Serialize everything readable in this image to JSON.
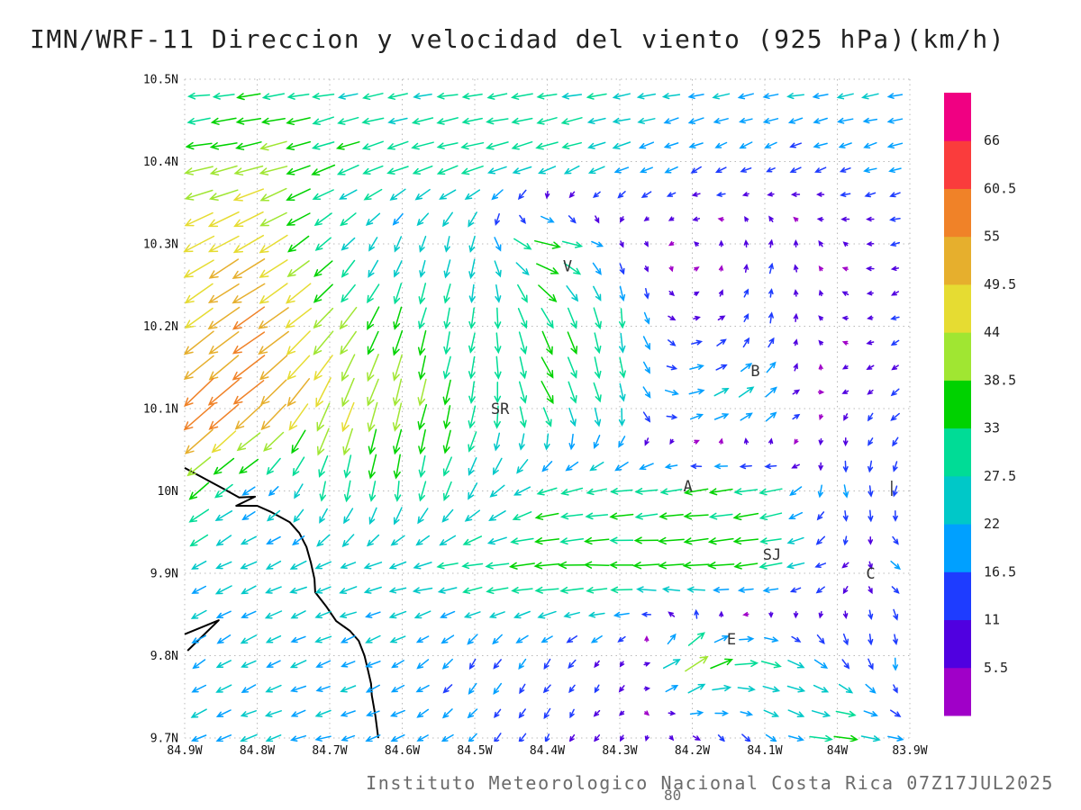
{
  "title": "IMN/WRF-11 Direccion y velocidad del viento (925 hPa)(km/h)",
  "footer": {
    "credit": "Instituto Meteorologico Nacional Costa Rica 07Z17JUL2025",
    "stray": "80"
  },
  "chart_data": {
    "type": "quiver",
    "title": "IMN/WRF-11 Direccion y velocidad del viento (925 hPa)(km/h)",
    "units": "km/h",
    "pressure_level": "925 hPa",
    "xlim": [
      -84.9,
      -83.9
    ],
    "ylim": [
      9.7,
      10.5
    ],
    "grid": "dotted",
    "xticks": [
      "84.9W",
      "84.8W",
      "84.7W",
      "84.6W",
      "84.5W",
      "84.4W",
      "84.3W",
      "84.2W",
      "84.1W",
      "84W",
      "83.9W"
    ],
    "yticks": [
      "10.5N",
      "10.4N",
      "10.3N",
      "10.2N",
      "10.1N",
      "10N",
      "9.9N",
      "9.8N",
      "9.7N"
    ],
    "colorbar": {
      "levels": [
        5.5,
        11,
        16.5,
        22,
        27.5,
        33,
        38.5,
        44,
        49.5,
        55,
        60.5,
        66
      ],
      "colors": [
        "#a000c8",
        "#5000e0",
        "#1e3cff",
        "#00a0ff",
        "#00c8c8",
        "#00dc96",
        "#00d200",
        "#a0e632",
        "#e6dc32",
        "#e6af2d",
        "#f08228",
        "#fa3c3c",
        "#f00082"
      ],
      "label_order_top_to_bottom": [
        "66",
        "60.5",
        "55",
        "49.5",
        "44",
        "38.5",
        "33",
        "27.5",
        "22",
        "16.5",
        "11",
        "5.5"
      ]
    },
    "cities": [
      {
        "label": "V",
        "lon": -84.372,
        "lat": 10.273
      },
      {
        "label": "SR",
        "lon": -84.465,
        "lat": 10.1
      },
      {
        "label": "B",
        "lon": -84.113,
        "lat": 10.146
      },
      {
        "label": "A",
        "lon": -84.206,
        "lat": 10.006
      },
      {
        "label": "SJ",
        "lon": -84.09,
        "lat": 9.923
      },
      {
        "label": "C",
        "lon": -83.954,
        "lat": 9.9
      },
      {
        "label": "E",
        "lon": -84.146,
        "lat": 9.82
      },
      {
        "label": "|",
        "lon": -83.925,
        "lat": 10.005
      }
    ],
    "coastline": [
      [
        [
          -84.9,
          10.028
        ],
        [
          -84.845,
          10.002
        ],
        [
          -84.825,
          9.992
        ],
        [
          -84.803,
          9.993
        ],
        [
          -84.829,
          9.982
        ],
        [
          -84.8,
          9.982
        ],
        [
          -84.782,
          9.975
        ],
        [
          -84.755,
          9.962
        ],
        [
          -84.742,
          9.949
        ],
        [
          -84.732,
          9.932
        ],
        [
          -84.726,
          9.913
        ],
        [
          -84.721,
          9.893
        ],
        [
          -84.72,
          9.877
        ],
        [
          -84.705,
          9.86
        ],
        [
          -84.691,
          9.842
        ],
        [
          -84.672,
          9.83
        ],
        [
          -84.66,
          9.818
        ],
        [
          -84.652,
          9.8
        ],
        [
          -84.648,
          9.785
        ],
        [
          -84.643,
          9.766
        ],
        [
          -84.642,
          9.752
        ],
        [
          -84.637,
          9.727
        ],
        [
          -84.633,
          9.7
        ]
      ],
      [
        [
          -84.9,
          9.826
        ],
        [
          -84.853,
          9.843
        ],
        [
          -84.896,
          9.806
        ]
      ]
    ],
    "wind_grid": {
      "comment": "u=east km/h, v=north km/h sampled every 0.1 deg; rows ordered lat 10.5 down to 9.7",
      "lons": [
        -84.9,
        -84.8,
        -84.7,
        -84.6,
        -84.5,
        -84.4,
        -84.3,
        -84.2,
        -84.1,
        -84.0,
        -83.9
      ],
      "lats": [
        10.5,
        10.4,
        10.3,
        10.2,
        10.1,
        10.0,
        9.9,
        9.8,
        9.7
      ],
      "uv": [
        [
          [
            -28,
            -3
          ],
          [
            -30,
            -3
          ],
          [
            -28,
            -4
          ],
          [
            -26,
            -4
          ],
          [
            -27,
            -3
          ],
          [
            -28,
            -4
          ],
          [
            -26,
            -3
          ],
          [
            -24,
            -4
          ],
          [
            -23,
            -3
          ],
          [
            -24,
            -4
          ],
          [
            -22,
            -3
          ]
        ],
        [
          [
            -38,
            -6
          ],
          [
            -40,
            -10
          ],
          [
            -32,
            -12
          ],
          [
            -30,
            -10
          ],
          [
            -32,
            -8
          ],
          [
            -30,
            -10
          ],
          [
            -22,
            -8
          ],
          [
            -16,
            -8
          ],
          [
            -14,
            -8
          ],
          [
            -16,
            -6
          ],
          [
            -18,
            -5
          ]
        ],
        [
          [
            -42,
            -22
          ],
          [
            -44,
            -26
          ],
          [
            -20,
            -18
          ],
          [
            -8,
            -20
          ],
          [
            -5,
            -24
          ],
          [
            38,
            -8
          ],
          [
            5,
            -8
          ],
          [
            -4,
            2
          ],
          [
            2,
            12
          ],
          [
            -5,
            4
          ],
          [
            -12,
            -4
          ]
        ],
        [
          [
            -38,
            -30
          ],
          [
            -48,
            -32
          ],
          [
            -28,
            -30
          ],
          [
            -10,
            -34
          ],
          [
            -4,
            -28
          ],
          [
            15,
            -32
          ],
          [
            3,
            -30
          ],
          [
            12,
            2
          ],
          [
            4,
            14
          ],
          [
            -6,
            3
          ],
          [
            -10,
            -6
          ]
        ],
        [
          [
            -45,
            -42
          ],
          [
            -42,
            -36
          ],
          [
            -18,
            -44
          ],
          [
            -10,
            -40
          ],
          [
            -6,
            -32
          ],
          [
            16,
            -30
          ],
          [
            5,
            -26
          ],
          [
            24,
            6
          ],
          [
            22,
            16
          ],
          [
            -5,
            -6
          ],
          [
            -12,
            -10
          ]
        ],
        [
          [
            -32,
            -26
          ],
          [
            -16,
            -10
          ],
          [
            -6,
            -28
          ],
          [
            -4,
            -30
          ],
          [
            -14,
            -22
          ],
          [
            -28,
            -8
          ],
          [
            -30,
            -4
          ],
          [
            -32,
            -4
          ],
          [
            -34,
            -6
          ],
          [
            6,
            -18
          ],
          [
            -6,
            -14
          ]
        ],
        [
          [
            -20,
            -10
          ],
          [
            -22,
            -10
          ],
          [
            -23,
            -8
          ],
          [
            -26,
            -5
          ],
          [
            -32,
            -3
          ],
          [
            -38,
            -2
          ],
          [
            -35,
            1
          ],
          [
            -38,
            -3
          ],
          [
            -33,
            -4
          ],
          [
            -12,
            -6
          ],
          [
            20,
            -10
          ]
        ],
        [
          [
            -18,
            -12
          ],
          [
            -20,
            -10
          ],
          [
            -20,
            -8
          ],
          [
            -18,
            -10
          ],
          [
            -9,
            -15
          ],
          [
            -10,
            -12
          ],
          [
            -6,
            -9
          ],
          [
            36,
            26
          ],
          [
            32,
            -5
          ],
          [
            10,
            -15
          ],
          [
            -5,
            -17
          ]
        ],
        [
          [
            -20,
            -10
          ],
          [
            -22,
            -8
          ],
          [
            -20,
            -6
          ],
          [
            -18,
            -8
          ],
          [
            -12,
            -12
          ],
          [
            -6,
            -12
          ],
          [
            -6,
            -6
          ],
          [
            8,
            -6
          ],
          [
            12,
            -10
          ],
          [
            36,
            -3
          ],
          [
            16,
            -5
          ]
        ]
      ]
    }
  }
}
